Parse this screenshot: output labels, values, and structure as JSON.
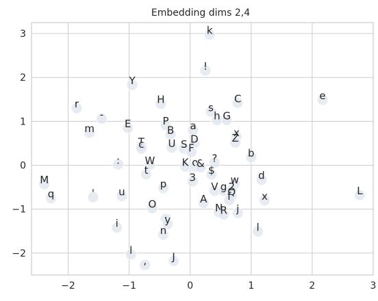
{
  "chart_data": {
    "type": "scatter",
    "title": "Embedding dims 2,4",
    "xlabel": "",
    "ylabel": "",
    "xlim": [
      -2.6,
      3.0
    ],
    "ylim": [
      -2.5,
      3.25
    ],
    "xticks": [
      -2,
      -1,
      0,
      1,
      2,
      3
    ],
    "yticks": [
      -2,
      -1,
      0,
      1,
      2,
      3
    ],
    "xtick_labels": [
      "−2",
      "−1",
      "0",
      "1",
      "2",
      "3"
    ],
    "ytick_labels": [
      "−2",
      "−1",
      "0",
      "1",
      "2",
      "3"
    ],
    "grid": true,
    "marker_color": "#dfe5ef",
    "points": [
      {
        "label": "k",
        "x": 0.32,
        "y": 2.98
      },
      {
        "label": "!",
        "x": 0.25,
        "y": 2.16
      },
      {
        "label": "e",
        "x": 2.17,
        "y": 1.49
      },
      {
        "label": "Y",
        "x": -0.95,
        "y": 1.83
      },
      {
        "label": "H",
        "x": -0.48,
        "y": 1.4
      },
      {
        "label": "C",
        "x": 0.78,
        "y": 1.42
      },
      {
        "label": "r",
        "x": -1.86,
        "y": 1.3
      },
      {
        "label": "s",
        "x": 0.34,
        "y": 1.22
      },
      {
        "label": "h",
        "x": 0.44,
        "y": 1.03
      },
      {
        "label": "G",
        "x": 0.6,
        "y": 1.03
      },
      {
        "label": "-",
        "x": -1.45,
        "y": 1.06
      },
      {
        "label": "P",
        "x": -0.4,
        "y": 0.91
      },
      {
        "label": "E",
        "x": -1.02,
        "y": 0.85
      },
      {
        "label": "a",
        "x": 0.05,
        "y": 0.8
      },
      {
        "label": "m",
        "x": -1.65,
        "y": 0.74
      },
      {
        "label": "B",
        "x": -0.32,
        "y": 0.7
      },
      {
        "label": "x",
        "x": 0.76,
        "y": 0.65
      },
      {
        "label": "D",
        "x": 0.07,
        "y": 0.5
      },
      {
        "label": "Z",
        "x": 0.74,
        "y": 0.52
      },
      {
        "label": "T",
        "x": -0.8,
        "y": 0.44
      },
      {
        "label": "c",
        "x": -0.8,
        "y": 0.38
      },
      {
        "label": "U",
        "x": -0.3,
        "y": 0.4
      },
      {
        "label": "S",
        "x": -0.1,
        "y": 0.38
      },
      {
        "label": "F",
        "x": 0.02,
        "y": 0.3
      },
      {
        "label": "b",
        "x": 1.0,
        "y": 0.18
      },
      {
        "label": ":",
        "x": -1.18,
        "y": 0.02
      },
      {
        "label": "W",
        "x": -0.66,
        "y": 0.01
      },
      {
        "label": "?",
        "x": 0.4,
        "y": 0.06
      },
      {
        "label": "K",
        "x": -0.08,
        "y": -0.03
      },
      {
        "label": "o",
        "x": 0.08,
        "y": -0.03
      },
      {
        "label": "&",
        "x": 0.17,
        "y": -0.05
      },
      {
        "label": "$",
        "x": 0.35,
        "y": -0.21
      },
      {
        "label": "t",
        "x": -0.72,
        "y": -0.21
      },
      {
        "label": "3",
        "x": 0.04,
        "y": -0.37
      },
      {
        "label": "d",
        "x": 1.17,
        "y": -0.33
      },
      {
        "label": "M",
        "x": -2.39,
        "y": -0.43
      },
      {
        "label": "w",
        "x": 0.73,
        "y": -0.43
      },
      {
        "label": "p",
        "x": -0.44,
        "y": -0.52
      },
      {
        "label": "V",
        "x": 0.4,
        "y": -0.58
      },
      {
        "label": "g",
        "x": 0.55,
        "y": -0.58
      },
      {
        "label": "2",
        "x": 0.68,
        "y": -0.58
      },
      {
        "label": "Q",
        "x": 0.68,
        "y": -0.7
      },
      {
        "label": "'",
        "x": -1.59,
        "y": -0.73
      },
      {
        "label": "u",
        "x": -1.12,
        "y": -0.7
      },
      {
        "label": "L",
        "x": 2.78,
        "y": -0.68
      },
      {
        "label": "q",
        "x": -2.28,
        "y": -0.75
      },
      {
        "label": "x",
        "x": 1.22,
        "y": -0.8
      },
      {
        "label": "f",
        "x": 0.64,
        "y": -0.8
      },
      {
        "label": "A",
        "x": 0.22,
        "y": -0.86
      },
      {
        "label": "O",
        "x": -0.62,
        "y": -0.98
      },
      {
        "label": "N",
        "x": 0.47,
        "y": -1.07
      },
      {
        "label": "R",
        "x": 0.55,
        "y": -1.12
      },
      {
        "label": "j",
        "x": 0.78,
        "y": -1.09
      },
      {
        "label": ".",
        "x": -0.4,
        "y": -1.22
      },
      {
        "label": "y",
        "x": -0.37,
        "y": -1.34
      },
      {
        "label": "i",
        "x": -1.2,
        "y": -1.42
      },
      {
        "label": "l",
        "x": 1.11,
        "y": -1.51
      },
      {
        "label": "n",
        "x": -0.44,
        "y": -1.58
      },
      {
        "label": "l",
        "x": -0.97,
        "y": -2.03
      },
      {
        "label": "J",
        "x": -0.27,
        "y": -2.18
      },
      {
        "label": ",",
        "x": -0.74,
        "y": -2.27
      }
    ]
  }
}
